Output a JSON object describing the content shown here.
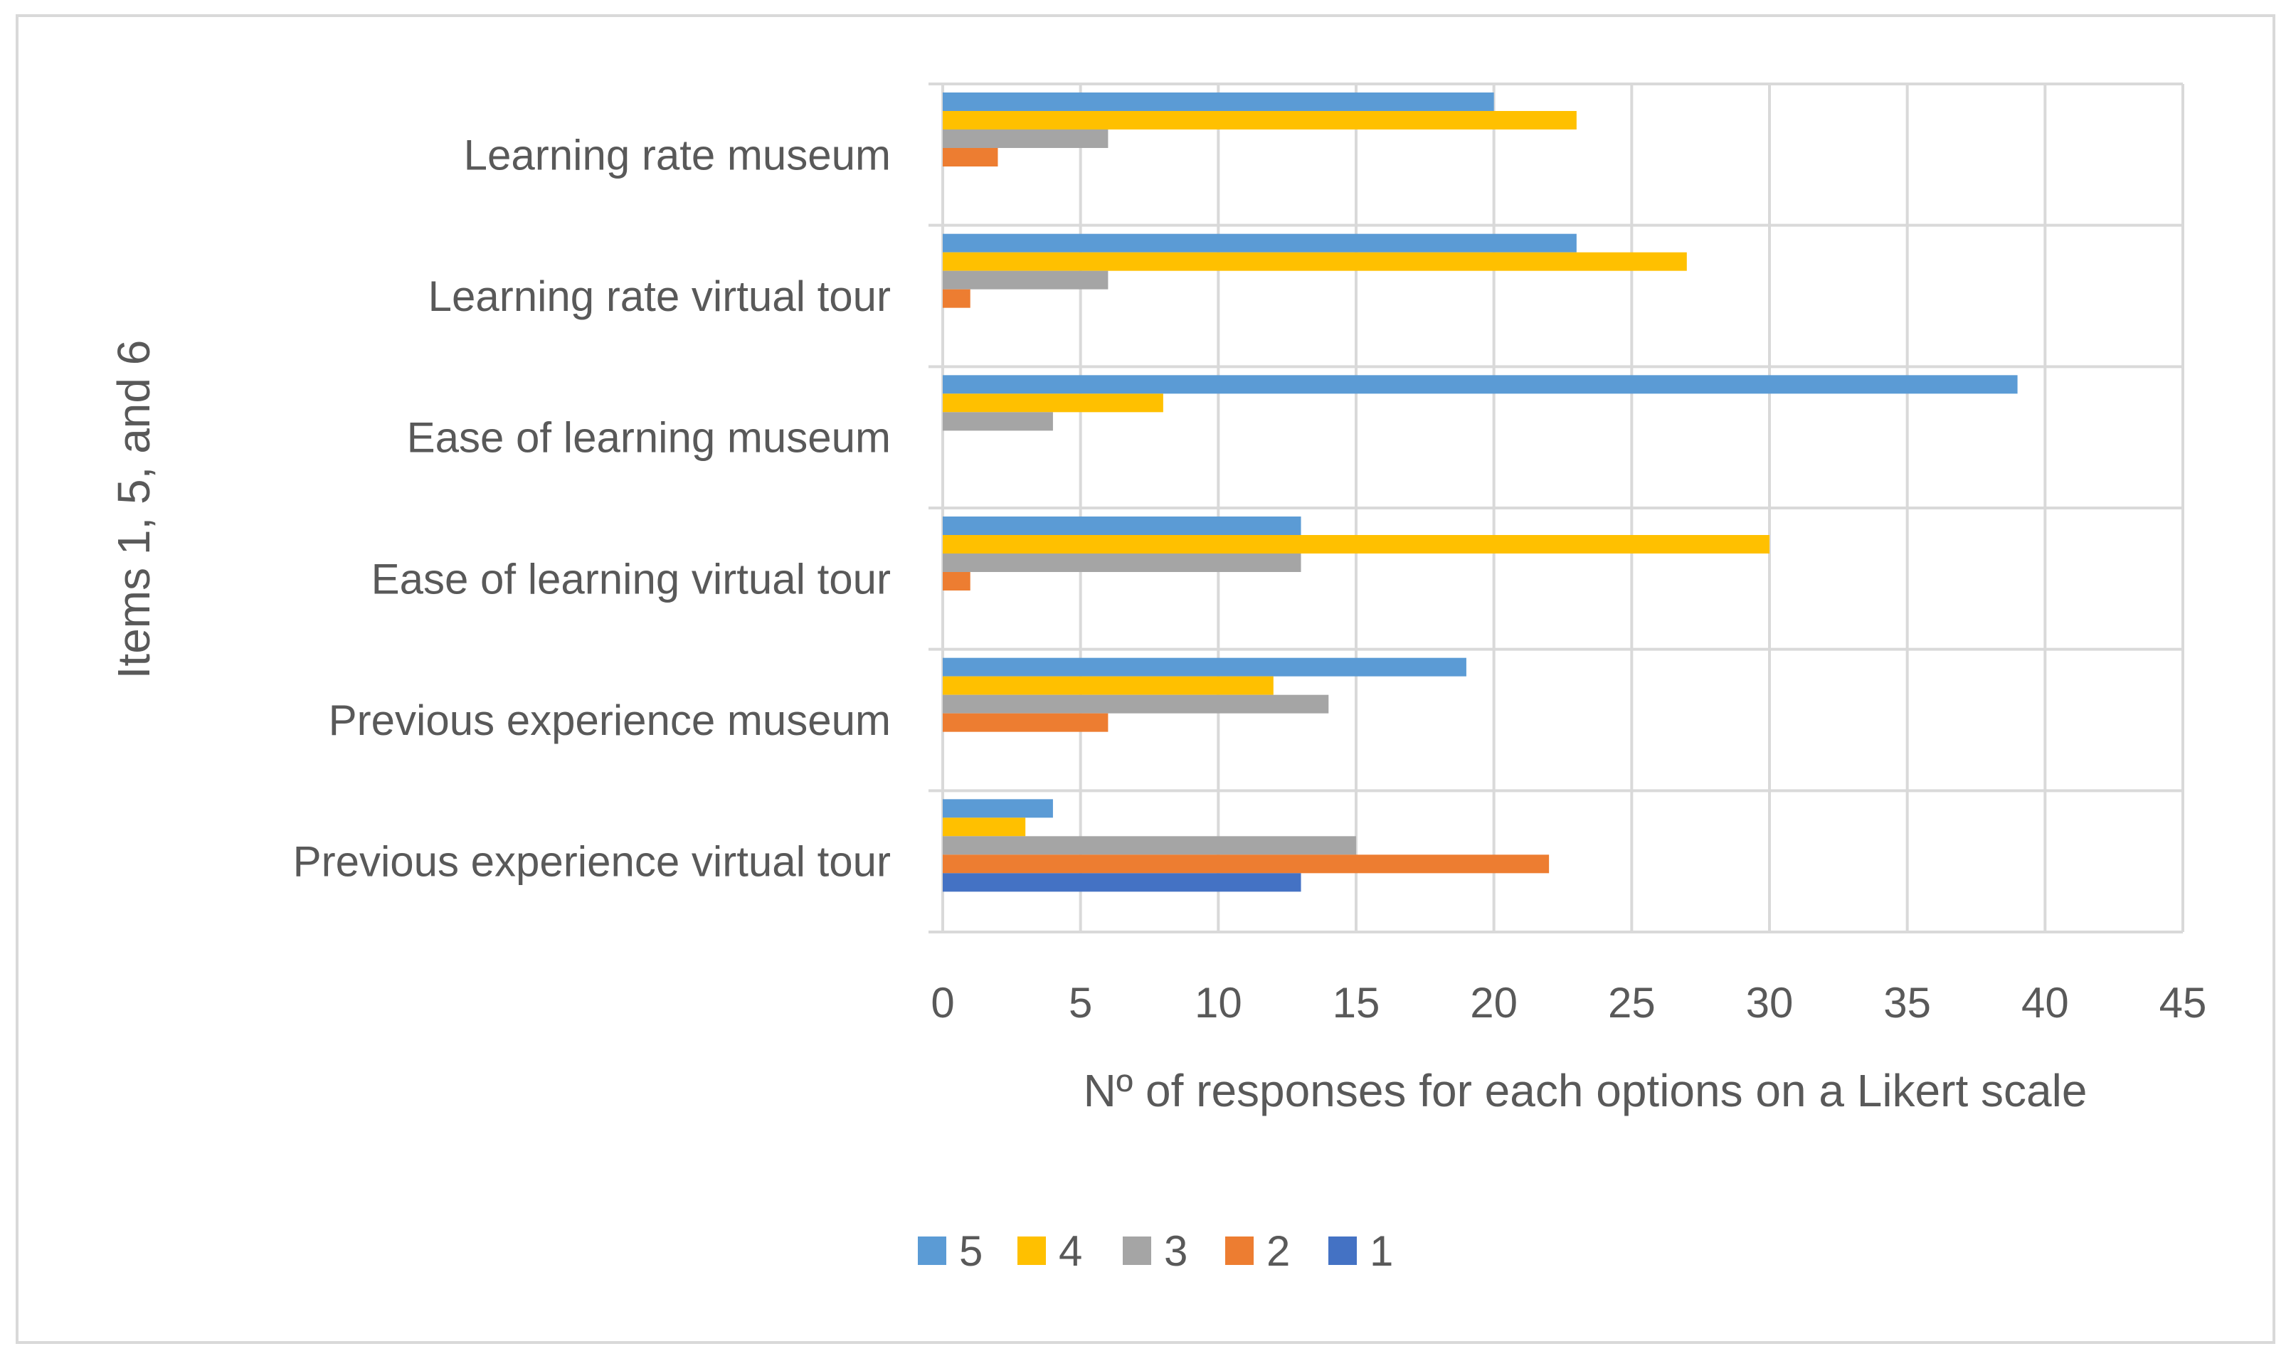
{
  "chart_data": {
    "type": "bar",
    "orientation": "horizontal",
    "title": "",
    "xlabel": "Nº of responses for each options on a Likert scale",
    "ylabel": "Items 1, 5, and 6",
    "xlim": [
      0,
      45
    ],
    "xticks": [
      "0",
      "5",
      "10",
      "15",
      "20",
      "25",
      "30",
      "35",
      "40",
      "45"
    ],
    "grid": true,
    "legend_position": "bottom",
    "categories": [
      "Learning rate museum",
      "Learning rate virtual tour",
      "Ease of learning museum",
      "Ease of learning virtual tour",
      "Previous experience museum",
      "Previous experience virtual tour"
    ],
    "series": [
      {
        "name": "5",
        "color": "#5b9bd5",
        "values": [
          20,
          23,
          39,
          13,
          19,
          4
        ]
      },
      {
        "name": "4",
        "color": "#ffc000",
        "values": [
          23,
          27,
          8,
          30,
          12,
          3
        ]
      },
      {
        "name": "3",
        "color": "#a5a5a5",
        "values": [
          6,
          6,
          4,
          13,
          14,
          15
        ]
      },
      {
        "name": "2",
        "color": "#ed7d31",
        "values": [
          2,
          1,
          0,
          1,
          6,
          22
        ]
      },
      {
        "name": "1",
        "color": "#4472c4",
        "values": [
          0,
          0,
          0,
          0,
          0,
          13
        ]
      }
    ]
  }
}
